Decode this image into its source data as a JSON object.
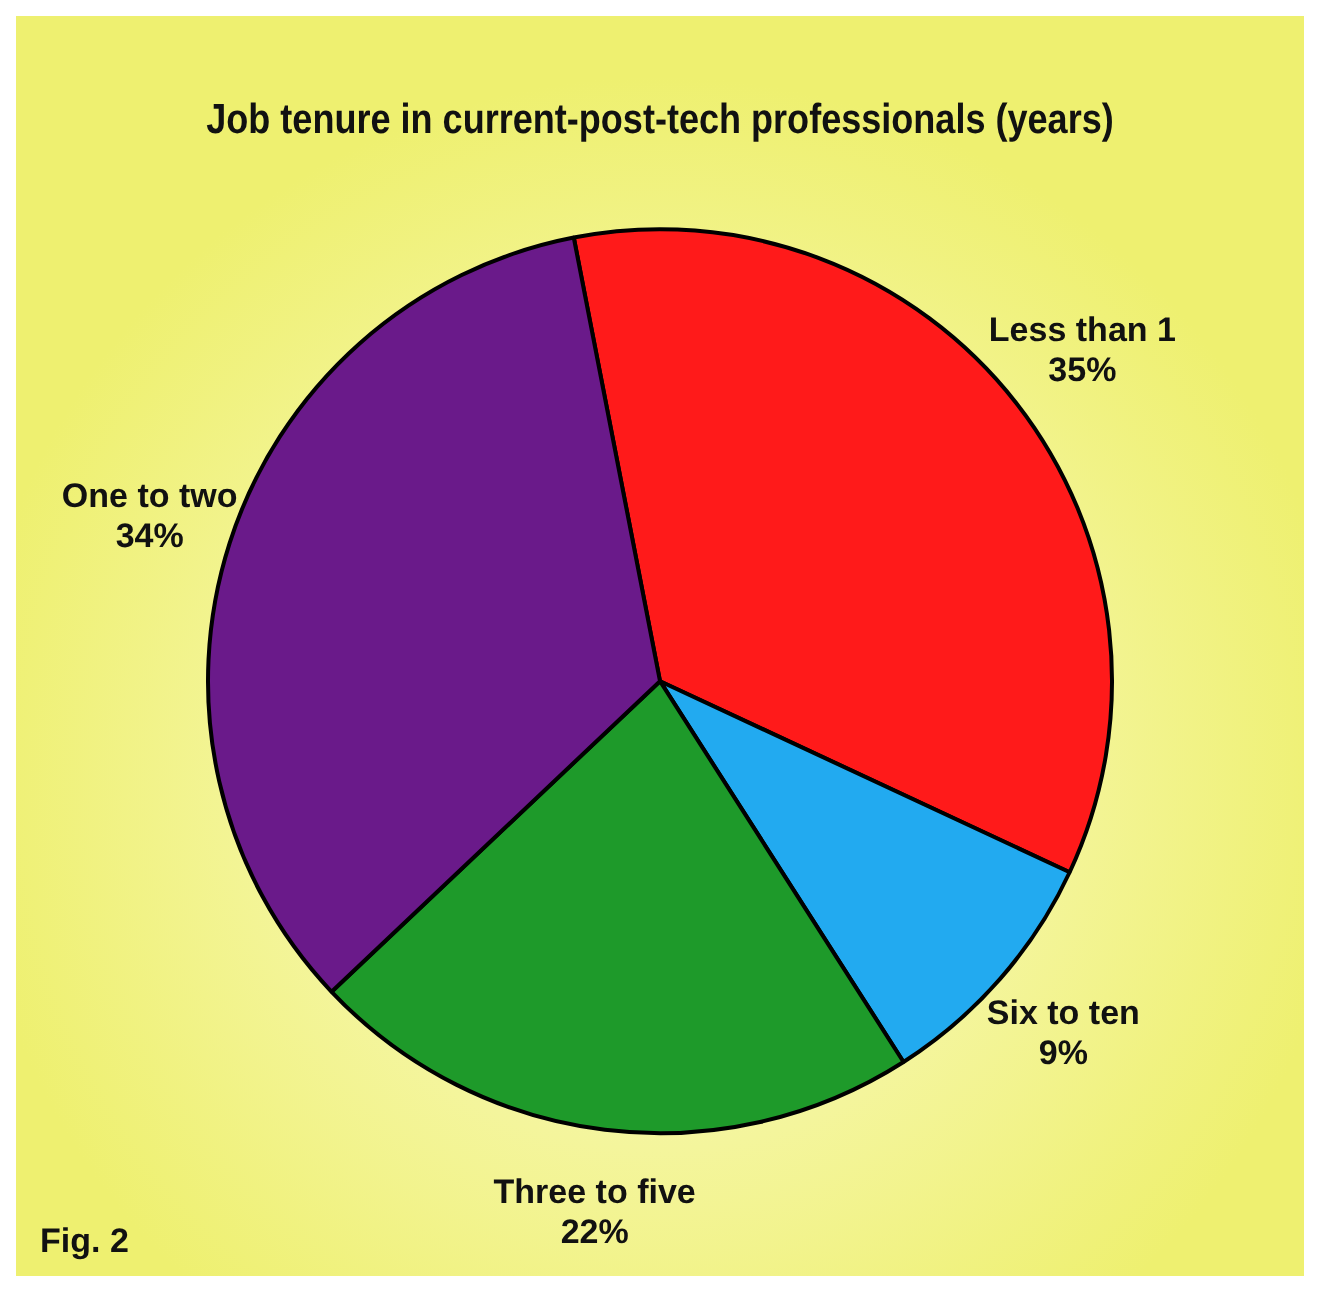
{
  "chart_data": {
    "type": "pie",
    "title": "Job tenure in current-post-tech professionals (years)",
    "categories": [
      "Less than 1",
      "Six to ten",
      "Three to five",
      "One to two"
    ],
    "values": [
      35,
      9,
      22,
      34
    ],
    "colors": [
      "#ff1a1a",
      "#22aaf0",
      "#1e9a2a",
      "#6a1a8a"
    ],
    "value_labels": [
      "35%",
      "9%",
      "22%",
      "34%"
    ],
    "annotations": [
      "Fig. 2"
    ]
  }
}
